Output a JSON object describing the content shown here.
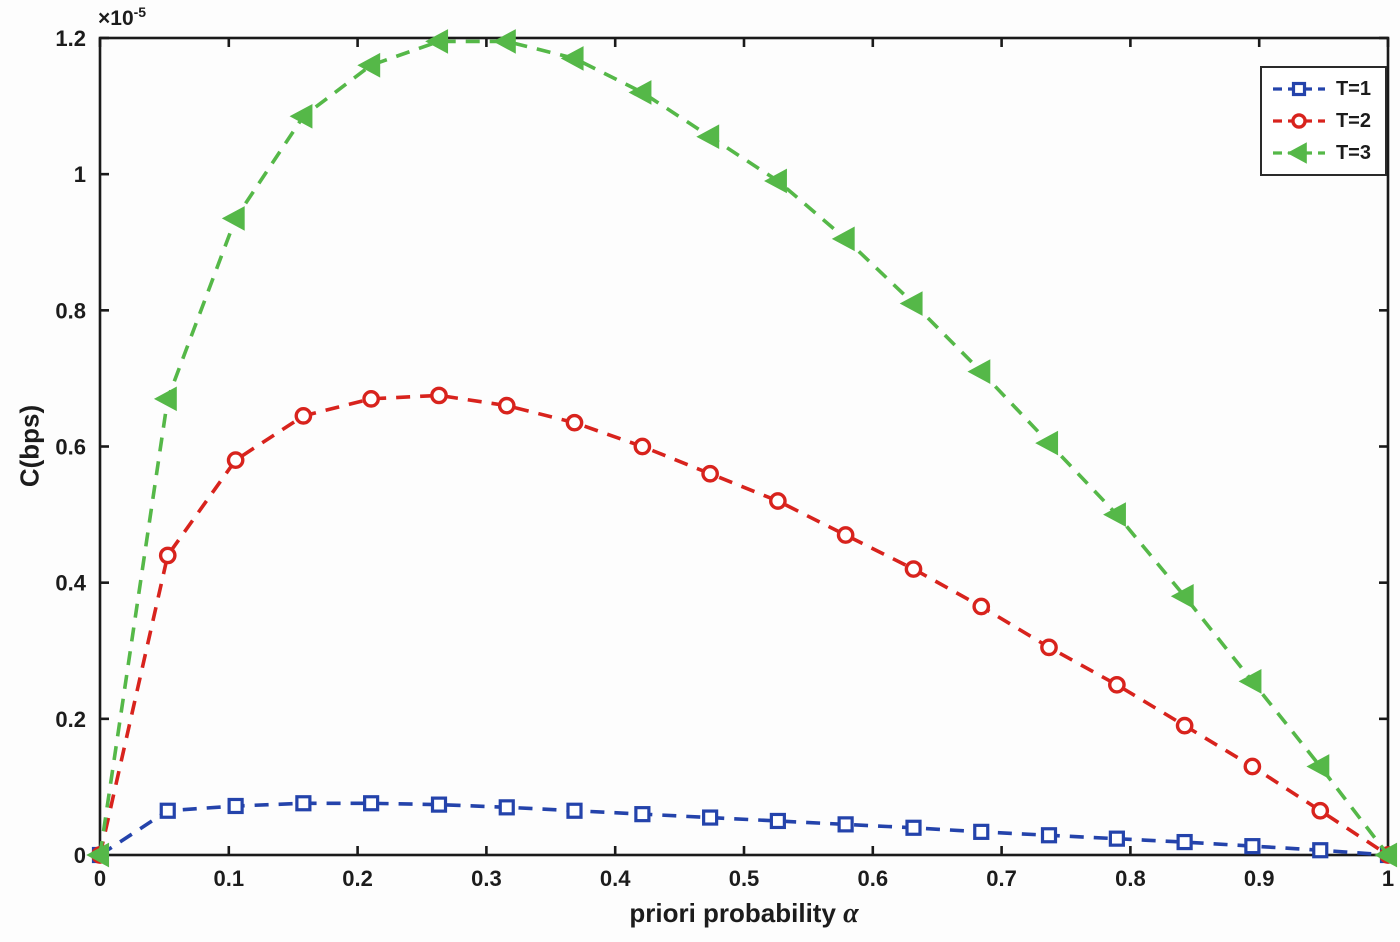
{
  "chart_data": {
    "type": "line",
    "title": "",
    "xlabel_text": "priori probability",
    "xlabel_symbol": "α",
    "ylabel": "C(bps)",
    "y_multiplier_base": "×10",
    "y_multiplier_exp": "-5",
    "y_unit_note": "y values expressed in units of 1e-5",
    "xlim": [
      0,
      1
    ],
    "ylim": [
      0,
      1.2
    ],
    "grid": false,
    "legend_position": "top-right",
    "x_ticks": [
      0,
      0.1,
      0.2,
      0.3,
      0.4,
      0.5,
      0.6,
      0.7,
      0.8,
      0.9,
      1
    ],
    "x_tick_labels": [
      "0",
      "0.1",
      "0.2",
      "0.3",
      "0.4",
      "0.5",
      "0.6",
      "0.7",
      "0.8",
      "0.9",
      "1"
    ],
    "y_ticks": [
      0,
      0.2,
      0.4,
      0.6,
      0.8,
      1,
      1.2
    ],
    "y_tick_labels": [
      "0",
      "0.2",
      "0.4",
      "0.6",
      "0.8",
      "1",
      "1.2"
    ],
    "x": [
      0,
      0.0526,
      0.1053,
      0.1579,
      0.2105,
      0.2632,
      0.3158,
      0.3684,
      0.4211,
      0.4737,
      0.5263,
      0.5789,
      0.6316,
      0.6842,
      0.7368,
      0.7895,
      0.8421,
      0.8947,
      0.9474,
      1
    ],
    "series": [
      {
        "name": "T=1",
        "color": "#2443ab",
        "marker": "square",
        "line_style": "dashed",
        "values": [
          0,
          0.065,
          0.072,
          0.076,
          0.076,
          0.074,
          0.07,
          0.065,
          0.06,
          0.055,
          0.05,
          0.045,
          0.04,
          0.034,
          0.029,
          0.024,
          0.019,
          0.013,
          0.007,
          0
        ]
      },
      {
        "name": "T=2",
        "color": "#d8231d",
        "marker": "circle",
        "line_style": "dashed",
        "values": [
          0,
          0.44,
          0.58,
          0.645,
          0.67,
          0.675,
          0.66,
          0.635,
          0.6,
          0.56,
          0.52,
          0.47,
          0.42,
          0.365,
          0.305,
          0.25,
          0.19,
          0.13,
          0.065,
          0
        ]
      },
      {
        "name": "T=3",
        "color": "#55b848",
        "marker": "triangle-left",
        "line_style": "dashed",
        "values": [
          0,
          0.67,
          0.935,
          1.085,
          1.16,
          1.195,
          1.195,
          1.17,
          1.12,
          1.055,
          0.99,
          0.905,
          0.81,
          0.71,
          0.605,
          0.5,
          0.38,
          0.255,
          0.13,
          0
        ]
      }
    ]
  }
}
